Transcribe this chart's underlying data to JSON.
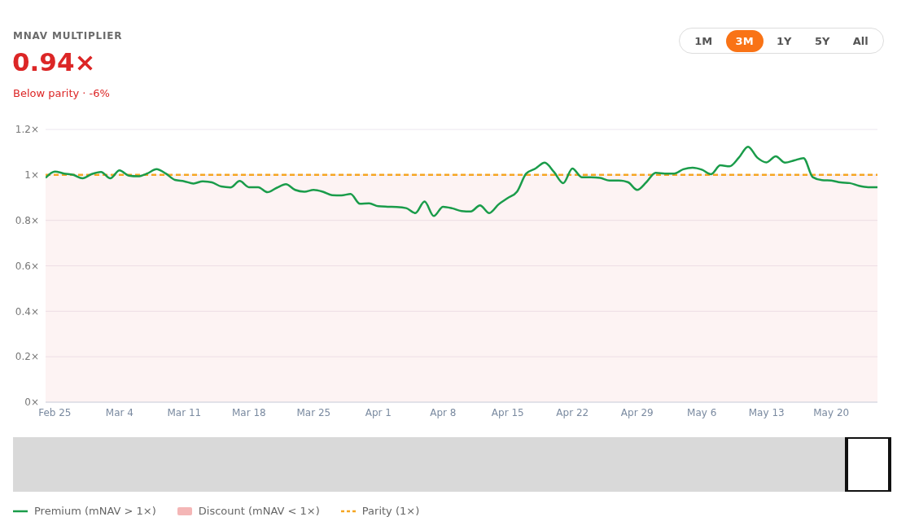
{
  "chart_data": {
    "type": "line",
    "title": "MNAV MULTIPLIER",
    "subtitle": "0.94×",
    "annotations": [
      "Below parity · -6%",
      "1M",
      "3M",
      "1Y",
      "5Y",
      "All"
    ],
    "x": [
      "--02-24",
      "--02-25",
      "--02-26",
      "--02-27",
      "--02-28",
      "--03-01",
      "--03-02",
      "--03-03",
      "--03-04",
      "--03-05",
      "--03-06",
      "--03-07",
      "--03-08",
      "--03-09",
      "--03-10",
      "--03-11",
      "--03-12",
      "--03-13",
      "--03-14",
      "--03-15",
      "--03-16",
      "--03-17",
      "--03-18",
      "--03-19",
      "--03-20",
      "--03-21",
      "--03-22",
      "--03-23",
      "--03-24",
      "--03-25",
      "--03-26",
      "--03-27",
      "--03-28",
      "--03-29",
      "--03-30",
      "--03-31",
      "--04-01",
      "--04-02",
      "--04-03",
      "--04-04",
      "--04-05",
      "--04-06",
      "--04-07",
      "--04-08",
      "--04-09",
      "--04-10",
      "--04-11",
      "--04-12",
      "--04-13",
      "--04-14",
      "--04-15",
      "--04-16",
      "--04-17",
      "--04-18",
      "--04-19",
      "--04-20",
      "--04-21",
      "--04-22",
      "--04-23",
      "--04-24",
      "--04-25",
      "--04-26",
      "--04-27",
      "--04-28",
      "--04-29",
      "--04-30",
      "--05-01",
      "--05-02",
      "--05-03",
      "--05-04",
      "--05-05",
      "--05-06",
      "--05-07",
      "--05-08",
      "--05-09",
      "--05-10",
      "--05-11",
      "--05-12",
      "--05-13",
      "--05-14",
      "--05-15",
      "--05-16",
      "--05-17",
      "--05-18",
      "--05-19",
      "--05-20",
      "--05-21",
      "--05-22",
      "--05-23",
      "--05-24",
      "--05-25"
    ],
    "series": [
      {
        "name": "Premium (mNAV > 1×)",
        "color": "#1a9c4a",
        "values": [
          0.987,
          1.015,
          1.006,
          1.0,
          0.985,
          1.004,
          1.013,
          0.985,
          1.02,
          0.997,
          0.994,
          1.006,
          1.025,
          1.006,
          0.978,
          0.972,
          0.962,
          0.972,
          0.967,
          0.949,
          0.945,
          0.973,
          0.946,
          0.946,
          0.924,
          0.943,
          0.959,
          0.934,
          0.926,
          0.934,
          0.926,
          0.911,
          0.91,
          0.916,
          0.873,
          0.875,
          0.862,
          0.86,
          0.859,
          0.854,
          0.832,
          0.883,
          0.819,
          0.86,
          0.853,
          0.841,
          0.839,
          0.866,
          0.832,
          0.87,
          0.898,
          0.926,
          1.006,
          1.028,
          1.054,
          1.013,
          0.964,
          1.028,
          0.99,
          0.99,
          0.987,
          0.975,
          0.975,
          0.968,
          0.934,
          0.968,
          1.009,
          1.006,
          1.006,
          1.025,
          1.032,
          1.023,
          1.003,
          1.042,
          1.038,
          1.076,
          1.124,
          1.076,
          1.055,
          1.082,
          1.054,
          1.064,
          1.074,
          0.99,
          0.977,
          0.975,
          0.967,
          0.964,
          0.952,
          0.946,
          0.946
        ]
      }
    ],
    "bands": [
      {
        "axis": "y",
        "from": 0,
        "to": 1,
        "label": "Discount (mNAV < 1×)",
        "color": "#f4b6b6"
      }
    ],
    "ref_lines": [
      {
        "axis": "y",
        "value": 1,
        "label": "Parity (1×)",
        "color": "#f5a623",
        "line_style": "dashed"
      }
    ],
    "xlim": [
      "--02-24",
      "--05-25"
    ],
    "xticks": [
      {
        "value": "--02-25",
        "label": "Feb 25"
      },
      {
        "value": "--03-04",
        "label": "Mar 4"
      },
      {
        "value": "--03-11",
        "label": "Mar 11"
      },
      {
        "value": "--03-18",
        "label": "Mar 18"
      },
      {
        "value": "--03-25",
        "label": "Mar 25"
      },
      {
        "value": "--04-01",
        "label": "Apr 1"
      },
      {
        "value": "--04-08",
        "label": "Apr 8"
      },
      {
        "value": "--04-15",
        "label": "Apr 15"
      },
      {
        "value": "--04-22",
        "label": "Apr 22"
      },
      {
        "value": "--04-29",
        "label": "Apr 29"
      },
      {
        "value": "--05-06",
        "label": "May 6"
      },
      {
        "value": "--05-13",
        "label": "May 13"
      },
      {
        "value": "--05-20",
        "label": "May 20"
      }
    ],
    "ylim": [
      0,
      1.2
    ],
    "yticks": [
      {
        "value": 0,
        "label": "0×"
      },
      {
        "value": 0.2,
        "label": "0.2×"
      },
      {
        "value": 0.4,
        "label": "0.4×"
      },
      {
        "value": 0.6,
        "label": "0.6×"
      },
      {
        "value": 0.8,
        "label": "0.8×"
      },
      {
        "value": 1,
        "label": "1×"
      },
      {
        "value": 1.2,
        "label": "1.2×"
      }
    ],
    "grid": "y",
    "legend": "bottom",
    "line_style": "solid"
  }
}
